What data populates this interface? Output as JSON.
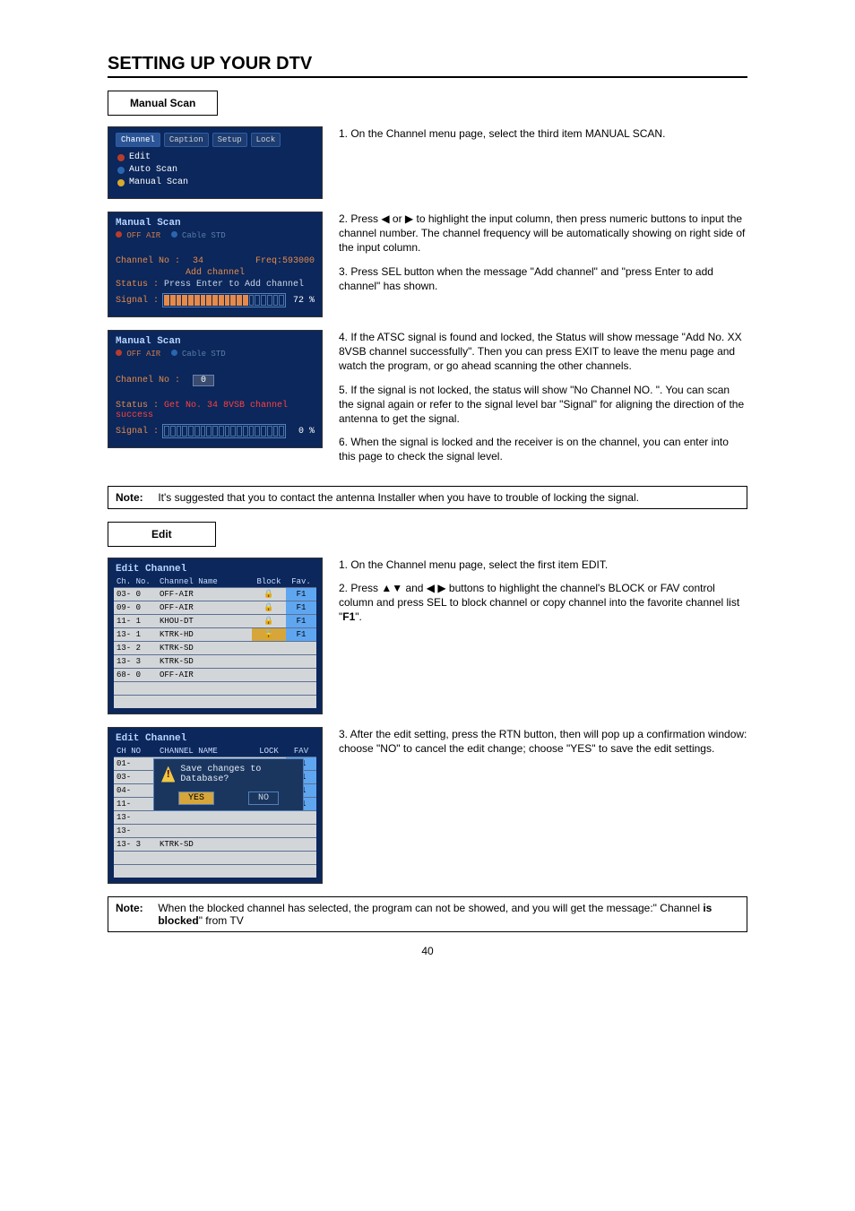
{
  "page_title": "SETTING UP YOUR DTV",
  "page_number": "40",
  "section_manual_scan_label": "Manual Scan",
  "section_edit_label": "Edit",
  "tabs": [
    "Channel",
    "Caption",
    "Setup",
    "Lock"
  ],
  "menu_items": [
    {
      "dot": "dot-red",
      "label": "Edit"
    },
    {
      "dot": "dot-blue",
      "label": "Auto Scan"
    },
    {
      "dot": "dot-yellow",
      "label": "Manual Scan"
    }
  ],
  "ms": {
    "title": "Manual Scan",
    "off_air": "OFF AIR",
    "cable_std": "Cable STD",
    "ch_label": "Channel No :",
    "ch_value": "34",
    "freq": "Freq:593000",
    "add_channel": "Add channel",
    "status_label": "Status :",
    "status_msg1": "Press Enter to Add channel",
    "signal_label": "Signal :",
    "signal_pct1": "72 %",
    "signal_on1": 14,
    "signal_total": 20,
    "ch_value2": "0",
    "status_msg2": "Get No. 34  8VSB channel success",
    "signal_pct2": "0  %",
    "signal_on2": 0
  },
  "edit_channel": {
    "title": "Edit Channel",
    "headers": [
      "Ch. No.",
      "Channel Name",
      "Block",
      "Fav."
    ],
    "headers2": [
      "CH NO",
      "CHANNEL NAME",
      "LOCK",
      "FAV"
    ],
    "rows": [
      {
        "no": "03- 0",
        "name": "OFF-AIR",
        "block": true,
        "fav": "F1"
      },
      {
        "no": "09- 0",
        "name": "OFF-AIR",
        "block": true,
        "fav": "F1"
      },
      {
        "no": "11- 1",
        "name": "KHOU-DT",
        "block": true,
        "fav": "F1"
      },
      {
        "no": "13- 1",
        "name": "KTRK-HD",
        "block": true,
        "block_sel": true,
        "fav": "F1"
      },
      {
        "no": "13- 2",
        "name": "KTRK-SD",
        "block": false,
        "fav": ""
      },
      {
        "no": "13- 3",
        "name": "KTRK-SD",
        "block": false,
        "fav": ""
      },
      {
        "no": "68- 0",
        "name": "OFF-AIR",
        "block": false,
        "fav": ""
      }
    ],
    "rows2_no": [
      "01-",
      "03-",
      "04-",
      "11-",
      "13-",
      "13-",
      "13- 3"
    ],
    "rows2_name_last": "KTRK-SD",
    "rows2_fav": [
      "F1",
      "F1",
      "F1",
      "F1",
      "",
      "",
      ""
    ],
    "dialog_text": "Save changes to Database?",
    "dialog_yes": "YES",
    "dialog_no": "NO"
  },
  "instr": {
    "ms1_1": "1. On the Channel menu page, select the third item MANUAL SCAN.",
    "ms2_1": "2. Press ◀ or ▶ to highlight the input column, then press numeric buttons to input the channel number. The channel frequency will be automatically showing on right side of the input column.",
    "ms2_2": "3. Press SEL button when the message \"Add channel\" and \"press Enter to add channel\" has shown.",
    "ms3_1": "4. If the ATSC signal is found and locked, the Status will show message \"Add No. XX 8VSB channel successfully\". Then you can press EXIT to leave the menu page and watch the program, or go ahead scanning the other channels.",
    "ms3_2": "5. If the signal is not locked, the status will show \"No Channel NO. \". You can scan the signal again or refer to the signal level bar \"Signal\" for aligning the direction of the antenna to get the signal.",
    "ms3_3": "6. When the signal is locked and the receiver is on the channel, you can enter into this page to check the signal level.",
    "ed1_1": "1. On the Channel menu page, select the first item EDIT.",
    "ed1_2_pre": "2. Press ▲▼ and ◀ ▶ buttons to highlight the channel's BLOCK or FAV control column and press SEL to block channel or copy channel into the favorite channel list \"",
    "ed1_2_bold": "F1",
    "ed1_2_post": "\".",
    "ed2_1": "3. After the edit setting, press the RTN button, then will pop up a confirmation window: choose \"NO\" to cancel the edit change; choose \"YES\" to save the edit settings."
  },
  "note1_label": "Note:",
  "note1_text": "It's suggested that you to contact the antenna Installer when you have to trouble of locking the signal.",
  "note2_label": "Note:",
  "note2_pre": "When the blocked channel has selected, the program can not be showed, and you will get the message:\" Channel ",
  "note2_bold": "is blocked",
  "note2_post": "\" from TV"
}
